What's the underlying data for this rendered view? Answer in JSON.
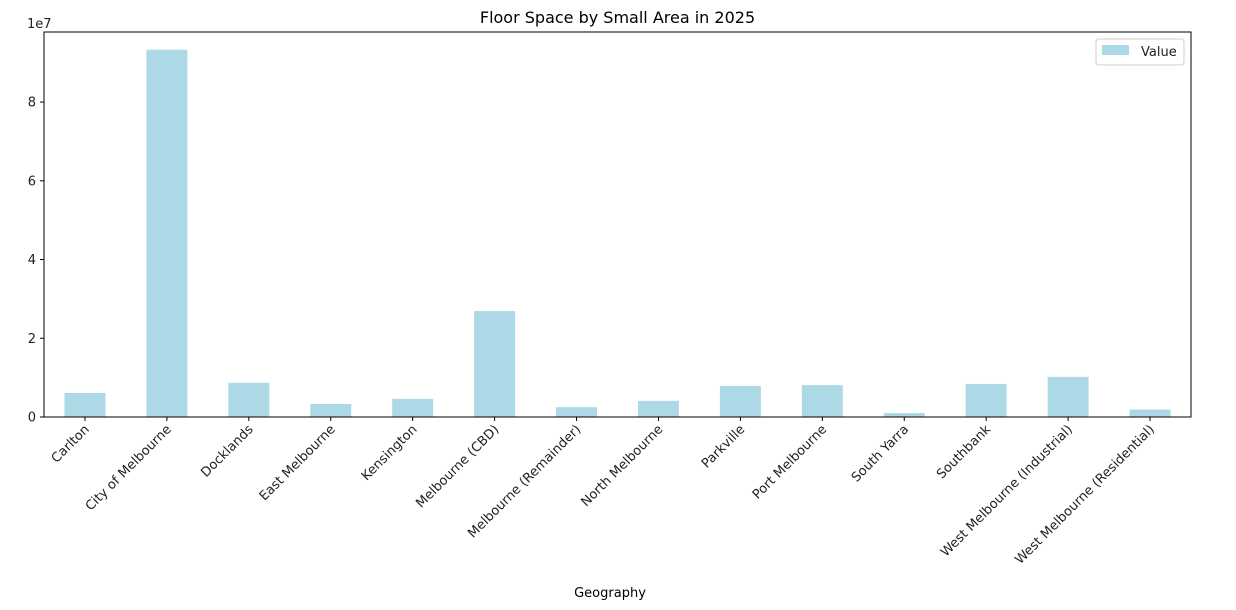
{
  "chart_data": {
    "type": "bar",
    "title": "Floor Space by Small Area in 2025",
    "xlabel": "Geography",
    "ylabel": "",
    "y_offset_label": "1e7",
    "y_scale": 10000000,
    "ylim": [
      0,
      9.78
    ],
    "yticks": [
      0,
      2,
      4,
      6,
      8
    ],
    "ytick_labels": [
      "0",
      "2",
      "4",
      "6",
      "8"
    ],
    "categories": [
      "Carlton",
      "City of Melbourne",
      "Docklands",
      "East Melbourne",
      "Kensington",
      "Melbourne (CBD)",
      "Melbourne (Remainder)",
      "North Melbourne",
      "Parkville",
      "Port Melbourne",
      "South Yarra",
      "Southbank",
      "West Melbourne (Industrial)",
      "West Melbourne (Residential)"
    ],
    "series": [
      {
        "name": "Value",
        "color": "#add8e6",
        "values": [
          6100000,
          93300000,
          8700000,
          3300000,
          4600000,
          26900000,
          2500000,
          4100000,
          7900000,
          8100000,
          1000000,
          8400000,
          10200000,
          1900000
        ]
      }
    ],
    "legend": {
      "position": "top-right",
      "entries": [
        "Value"
      ]
    },
    "grid": false
  }
}
